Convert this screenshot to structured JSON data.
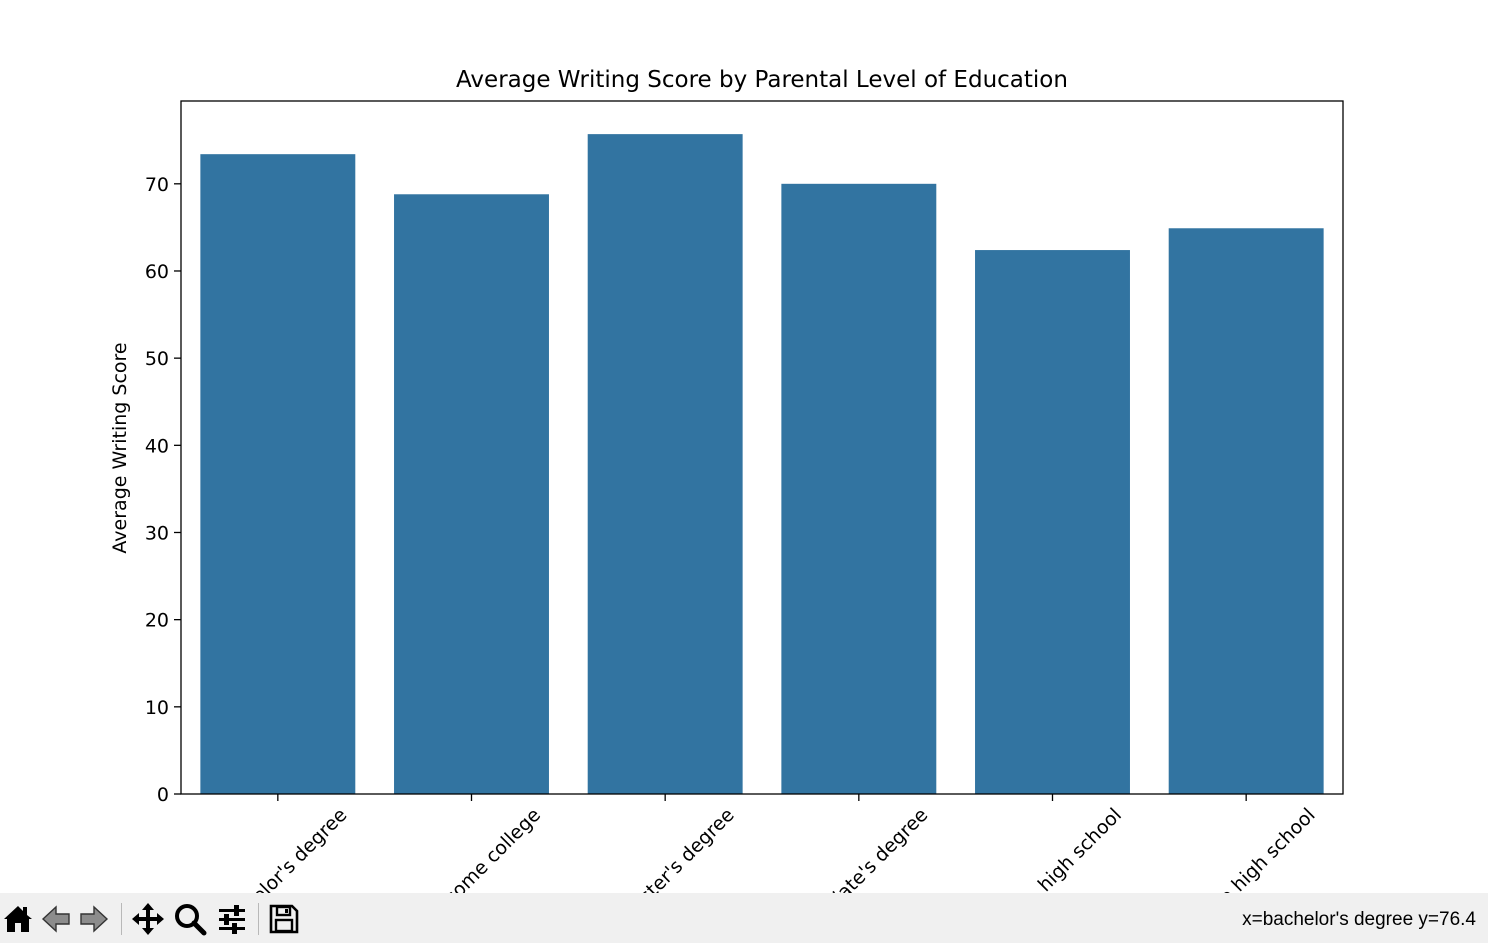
{
  "chart_data": {
    "type": "bar",
    "title": "Average Writing Score by Parental Level of Education",
    "xlabel": "",
    "ylabel": "Average Writing Score",
    "categories": [
      "bachelor's degree",
      "some college",
      "master's degree",
      "associate's degree",
      "high school",
      "some high school"
    ],
    "values": [
      73.4,
      68.8,
      75.7,
      70.0,
      62.4,
      64.9
    ],
    "ylim": [
      0,
      79.5
    ],
    "yticks": [
      0,
      10,
      20,
      30,
      40,
      50,
      60,
      70
    ],
    "bar_color": "#3274a1",
    "grid": false,
    "legend": "none"
  },
  "toolbar": {
    "icons": [
      "home-icon",
      "back-arrow-icon",
      "forward-arrow-icon",
      "pan-icon",
      "zoom-icon",
      "configure-subplots-icon",
      "save-icon"
    ],
    "coords_text": "x=bachelor's degree y=76.4"
  }
}
